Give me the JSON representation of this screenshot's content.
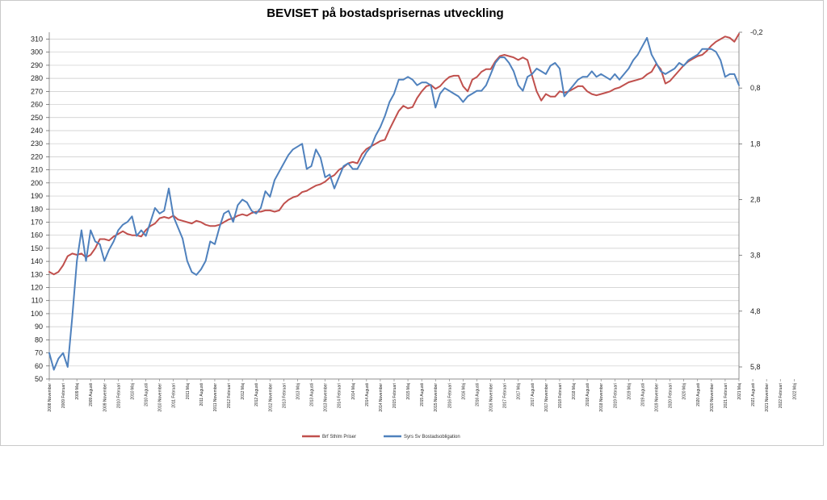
{
  "chart_data": {
    "type": "line",
    "title": "BEVISET på bostadsprisernas utveckling",
    "ylim_left": [
      50,
      310
    ],
    "yticks_left": [
      "50",
      "60",
      "70",
      "80",
      "90",
      "100",
      "110",
      "120",
      "130",
      "140",
      "150",
      "160",
      "170",
      "180",
      "190",
      "200",
      "210",
      "220",
      "230",
      "240",
      "250",
      "260",
      "270",
      "280",
      "290",
      "300",
      "310"
    ],
    "ylim_right": [
      -0.2,
      6.3
    ],
    "right_axis_inverted": true,
    "yticks_right": [
      "-0,2",
      "0,8",
      "1,8",
      "2,8",
      "3,8",
      "4,8",
      "5,8"
    ],
    "x_count": 151,
    "x_tick_step": 3,
    "x_tick_labels": [
      "2008 November",
      "2009 Februari",
      "2009 Maj",
      "2009 Augusti",
      "2009 November",
      "2010 Februari",
      "2010 Maj",
      "2010 Augusti",
      "2010 November",
      "2011 Februari",
      "2011 Maj",
      "2011 Augusti",
      "2011 November",
      "2012 Februari",
      "2012 Maj",
      "2012 Augusti",
      "2012 November",
      "2013 Februari",
      "2013 Maj",
      "2013 Augusti",
      "2013 November",
      "2014 Februari",
      "2014 Maj",
      "2014 Augusti",
      "2014 November",
      "2015 Februari",
      "2015 Maj",
      "2015 Augusti",
      "2015 November",
      "2016 Februari",
      "2016 Maj",
      "2016 Augusti",
      "2016 November",
      "2017 Februari",
      "2017 Maj",
      "2017 Augusti",
      "2017 November",
      "2018 Februari",
      "2018 Maj",
      "2018 Augusti",
      "2018 November",
      "2019 Februari",
      "2019 Maj",
      "2019 Augusti",
      "2019 November",
      "2020 Februari",
      "2020 Maj",
      "2020 Augusti",
      "2020 November",
      "2021 Februari",
      "2021 Maj",
      "2021 Augusti",
      "2021 November",
      "2022 Februari",
      "2022 Maj"
    ],
    "grid": "horizontal",
    "legend_position": "bottom",
    "series": [
      {
        "name": "Brf Sthlm Priser",
        "color": "#c0504d",
        "axis": "left",
        "anchors": [
          [
            0,
            132
          ],
          [
            1,
            130
          ],
          [
            2,
            132
          ],
          [
            3,
            137
          ],
          [
            4,
            144
          ],
          [
            5,
            146
          ],
          [
            6,
            145
          ],
          [
            7,
            146
          ],
          [
            8,
            143
          ],
          [
            9,
            145
          ],
          [
            10,
            150
          ],
          [
            11,
            157
          ],
          [
            12,
            157
          ],
          [
            13,
            156
          ],
          [
            14,
            159
          ],
          [
            15,
            161
          ],
          [
            16,
            163
          ],
          [
            17,
            161
          ],
          [
            18,
            160
          ],
          [
            19,
            160
          ],
          [
            20,
            159
          ],
          [
            21,
            164
          ],
          [
            22,
            167
          ],
          [
            23,
            169
          ],
          [
            24,
            173
          ],
          [
            25,
            174
          ],
          [
            26,
            173
          ],
          [
            27,
            175
          ],
          [
            28,
            172
          ],
          [
            29,
            171
          ],
          [
            30,
            170
          ],
          [
            31,
            169
          ],
          [
            32,
            171
          ],
          [
            33,
            170
          ],
          [
            34,
            168
          ],
          [
            35,
            167
          ],
          [
            36,
            167
          ],
          [
            37,
            168
          ],
          [
            38,
            170
          ],
          [
            39,
            172
          ],
          [
            40,
            173
          ],
          [
            41,
            175
          ],
          [
            42,
            176
          ],
          [
            43,
            175
          ],
          [
            44,
            177
          ],
          [
            45,
            178
          ],
          [
            46,
            178
          ],
          [
            47,
            179
          ],
          [
            48,
            179
          ],
          [
            49,
            178
          ],
          [
            50,
            179
          ],
          [
            51,
            184
          ],
          [
            52,
            187
          ],
          [
            53,
            189
          ],
          [
            54,
            190
          ],
          [
            55,
            193
          ],
          [
            56,
            194
          ],
          [
            57,
            196
          ],
          [
            58,
            198
          ],
          [
            59,
            199
          ],
          [
            60,
            201
          ],
          [
            61,
            204
          ],
          [
            62,
            206
          ],
          [
            63,
            210
          ],
          [
            64,
            212
          ],
          [
            65,
            215
          ],
          [
            66,
            216
          ],
          [
            67,
            215
          ],
          [
            68,
            222
          ],
          [
            69,
            226
          ],
          [
            70,
            228
          ],
          [
            71,
            230
          ],
          [
            72,
            232
          ],
          [
            73,
            233
          ],
          [
            74,
            241
          ],
          [
            75,
            248
          ],
          [
            76,
            255
          ],
          [
            77,
            259
          ],
          [
            78,
            257
          ],
          [
            79,
            258
          ],
          [
            80,
            265
          ],
          [
            81,
            270
          ],
          [
            82,
            274
          ],
          [
            83,
            275
          ],
          [
            84,
            272
          ],
          [
            85,
            274
          ],
          [
            86,
            278
          ],
          [
            87,
            281
          ],
          [
            88,
            282
          ],
          [
            89,
            282
          ],
          [
            90,
            274
          ],
          [
            91,
            270
          ],
          [
            92,
            279
          ],
          [
            93,
            281
          ],
          [
            94,
            285
          ],
          [
            95,
            287
          ],
          [
            96,
            287
          ],
          [
            97,
            293
          ],
          [
            98,
            297
          ],
          [
            99,
            298
          ],
          [
            100,
            297
          ],
          [
            101,
            296
          ],
          [
            102,
            294
          ],
          [
            103,
            296
          ],
          [
            104,
            294
          ],
          [
            105,
            282
          ],
          [
            106,
            270
          ],
          [
            107,
            263
          ],
          [
            108,
            268
          ],
          [
            109,
            266
          ],
          [
            110,
            266
          ],
          [
            111,
            270
          ],
          [
            112,
            269
          ],
          [
            113,
            270
          ],
          [
            114,
            272
          ],
          [
            115,
            274
          ],
          [
            116,
            274
          ],
          [
            117,
            270
          ],
          [
            118,
            268
          ],
          [
            119,
            267
          ],
          [
            120,
            268
          ],
          [
            121,
            269
          ],
          [
            122,
            270
          ],
          [
            123,
            272
          ],
          [
            124,
            273
          ],
          [
            125,
            275
          ],
          [
            126,
            277
          ],
          [
            127,
            278
          ],
          [
            128,
            279
          ],
          [
            129,
            280
          ],
          [
            130,
            283
          ],
          [
            131,
            285
          ],
          [
            132,
            291
          ],
          [
            133,
            287
          ],
          [
            134,
            276
          ],
          [
            135,
            278
          ],
          [
            136,
            282
          ],
          [
            137,
            286
          ],
          [
            138,
            290
          ],
          [
            139,
            293
          ],
          [
            140,
            295
          ],
          [
            141,
            297
          ],
          [
            142,
            298
          ],
          [
            143,
            301
          ],
          [
            144,
            305
          ],
          [
            145,
            308
          ],
          [
            146,
            310
          ],
          [
            147,
            312
          ],
          [
            148,
            311
          ],
          [
            149,
            308
          ],
          [
            150,
            314
          ]
        ]
      },
      {
        "name": "Syrs Sv Bostadsobligation",
        "color": "#4f81bd",
        "axis": "right",
        "anchors": [
          [
            0,
            5.55
          ],
          [
            1,
            5.85
          ],
          [
            2,
            5.65
          ],
          [
            3,
            5.55
          ],
          [
            4,
            5.8
          ],
          [
            5,
            4.9
          ],
          [
            6,
            3.9
          ],
          [
            7,
            3.35
          ],
          [
            8,
            3.9
          ],
          [
            9,
            3.35
          ],
          [
            10,
            3.55
          ],
          [
            11,
            3.6
          ],
          [
            12,
            3.9
          ],
          [
            13,
            3.7
          ],
          [
            14,
            3.55
          ],
          [
            15,
            3.35
          ],
          [
            16,
            3.25
          ],
          [
            17,
            3.2
          ],
          [
            18,
            3.1
          ],
          [
            19,
            3.45
          ],
          [
            20,
            3.35
          ],
          [
            21,
            3.45
          ],
          [
            22,
            3.2
          ],
          [
            23,
            2.95
          ],
          [
            24,
            3.05
          ],
          [
            25,
            3.0
          ],
          [
            26,
            2.6
          ],
          [
            27,
            3.1
          ],
          [
            28,
            3.3
          ],
          [
            29,
            3.5
          ],
          [
            30,
            3.9
          ],
          [
            31,
            4.1
          ],
          [
            32,
            4.15
          ],
          [
            33,
            4.05
          ],
          [
            34,
            3.9
          ],
          [
            35,
            3.55
          ],
          [
            36,
            3.6
          ],
          [
            37,
            3.3
          ],
          [
            38,
            3.05
          ],
          [
            39,
            3.0
          ],
          [
            40,
            3.2
          ],
          [
            41,
            2.9
          ],
          [
            42,
            2.8
          ],
          [
            43,
            2.85
          ],
          [
            44,
            3.0
          ],
          [
            45,
            3.05
          ],
          [
            46,
            2.95
          ],
          [
            47,
            2.65
          ],
          [
            48,
            2.75
          ],
          [
            49,
            2.45
          ],
          [
            50,
            2.3
          ],
          [
            51,
            2.15
          ],
          [
            52,
            2.0
          ],
          [
            53,
            1.9
          ],
          [
            54,
            1.85
          ],
          [
            55,
            1.8
          ],
          [
            56,
            2.25
          ],
          [
            57,
            2.2
          ],
          [
            58,
            1.9
          ],
          [
            59,
            2.05
          ],
          [
            60,
            2.4
          ],
          [
            61,
            2.35
          ],
          [
            62,
            2.6
          ],
          [
            63,
            2.4
          ],
          [
            64,
            2.2
          ],
          [
            65,
            2.15
          ],
          [
            66,
            2.25
          ],
          [
            67,
            2.25
          ],
          [
            68,
            2.1
          ],
          [
            69,
            1.95
          ],
          [
            70,
            1.85
          ],
          [
            71,
            1.65
          ],
          [
            72,
            1.5
          ],
          [
            73,
            1.3
          ],
          [
            74,
            1.05
          ],
          [
            75,
            0.9
          ],
          [
            76,
            0.65
          ],
          [
            77,
            0.65
          ],
          [
            78,
            0.6
          ],
          [
            79,
            0.65
          ],
          [
            80,
            0.75
          ],
          [
            81,
            0.7
          ],
          [
            82,
            0.7
          ],
          [
            83,
            0.75
          ],
          [
            84,
            1.15
          ],
          [
            85,
            0.9
          ],
          [
            86,
            0.8
          ],
          [
            87,
            0.85
          ],
          [
            88,
            0.9
          ],
          [
            89,
            0.95
          ],
          [
            90,
            1.05
          ],
          [
            91,
            0.95
          ],
          [
            92,
            0.9
          ],
          [
            93,
            0.85
          ],
          [
            94,
            0.85
          ],
          [
            95,
            0.75
          ],
          [
            96,
            0.55
          ],
          [
            97,
            0.35
          ],
          [
            98,
            0.25
          ],
          [
            99,
            0.25
          ],
          [
            100,
            0.35
          ],
          [
            101,
            0.5
          ],
          [
            102,
            0.75
          ],
          [
            103,
            0.85
          ],
          [
            104,
            0.6
          ],
          [
            105,
            0.55
          ],
          [
            106,
            0.45
          ],
          [
            107,
            0.5
          ],
          [
            108,
            0.55
          ],
          [
            109,
            0.4
          ],
          [
            110,
            0.35
          ],
          [
            111,
            0.45
          ],
          [
            112,
            0.95
          ],
          [
            113,
            0.85
          ],
          [
            114,
            0.75
          ],
          [
            115,
            0.65
          ],
          [
            116,
            0.6
          ],
          [
            117,
            0.6
          ],
          [
            118,
            0.5
          ],
          [
            119,
            0.6
          ],
          [
            120,
            0.55
          ],
          [
            121,
            0.6
          ],
          [
            122,
            0.65
          ],
          [
            123,
            0.55
          ],
          [
            124,
            0.65
          ],
          [
            125,
            0.55
          ],
          [
            126,
            0.45
          ],
          [
            127,
            0.3
          ],
          [
            128,
            0.2
          ],
          [
            129,
            0.05
          ],
          [
            130,
            -0.1
          ],
          [
            131,
            0.2
          ],
          [
            132,
            0.35
          ],
          [
            133,
            0.5
          ],
          [
            134,
            0.55
          ],
          [
            135,
            0.5
          ],
          [
            136,
            0.45
          ],
          [
            137,
            0.35
          ],
          [
            138,
            0.4
          ],
          [
            139,
            0.3
          ],
          [
            140,
            0.25
          ],
          [
            141,
            0.2
          ],
          [
            142,
            0.1
          ],
          [
            143,
            0.1
          ],
          [
            144,
            0.1
          ],
          [
            145,
            0.15
          ],
          [
            146,
            0.3
          ],
          [
            147,
            0.6
          ],
          [
            148,
            0.55
          ],
          [
            149,
            0.55
          ],
          [
            150,
            0.75
          ]
        ]
      }
    ]
  }
}
